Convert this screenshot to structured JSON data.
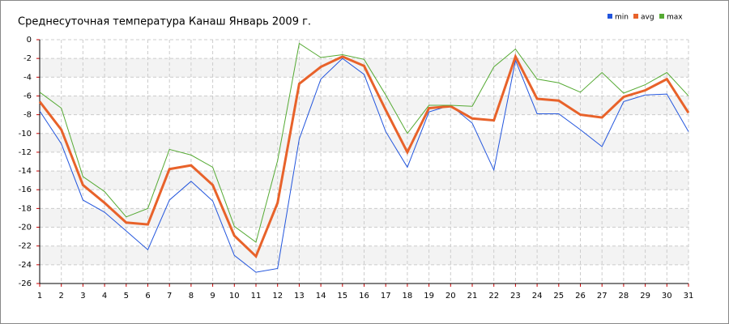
{
  "chart_data": {
    "type": "line",
    "title": "Среднесуточная температура Канаш  Январь 2009 г.",
    "x": [
      1,
      2,
      3,
      4,
      5,
      6,
      7,
      8,
      9,
      10,
      11,
      12,
      13,
      14,
      15,
      16,
      17,
      18,
      19,
      20,
      21,
      22,
      23,
      24,
      25,
      26,
      27,
      28,
      29,
      30,
      31
    ],
    "xlim": [
      1,
      31
    ],
    "ylim": [
      -26,
      0
    ],
    "yticks": [
      -26,
      -24,
      -22,
      -20,
      -18,
      -16,
      -14,
      -12,
      -10,
      -8,
      -6,
      -4,
      -2,
      0
    ],
    "grid": true,
    "legend": "top-right",
    "series": [
      {
        "name": "min",
        "color": "#2255dd",
        "values": [
          -7.6,
          -11.1,
          -17.1,
          -18.4,
          -20.4,
          -22.4,
          -17.1,
          -15.1,
          -17.2,
          -23.0,
          -24.8,
          -24.4,
          -10.6,
          -4.2,
          -2.0,
          -3.7,
          -9.8,
          -13.6,
          -7.7,
          -7.0,
          -8.9,
          -13.9,
          -2.2,
          -7.9,
          -7.9,
          -9.6,
          -11.4,
          -6.6,
          -5.9,
          -5.8,
          -9.8
        ]
      },
      {
        "name": "avg",
        "color": "#e8622a",
        "values": [
          -6.6,
          -9.6,
          -15.5,
          -17.4,
          -19.5,
          -19.7,
          -13.8,
          -13.4,
          -15.5,
          -20.9,
          -23.1,
          -17.4,
          -4.7,
          -2.9,
          -1.8,
          -2.8,
          -7.5,
          -12.0,
          -7.3,
          -7.1,
          -8.4,
          -8.6,
          -1.8,
          -6.3,
          -6.5,
          -8.0,
          -8.3,
          -6.1,
          -5.4,
          -4.2,
          -7.8
        ]
      },
      {
        "name": "max",
        "color": "#55aa33",
        "values": [
          -5.6,
          -7.3,
          -14.6,
          -16.2,
          -18.9,
          -18.0,
          -11.7,
          -12.3,
          -13.6,
          -19.9,
          -21.6,
          -12.9,
          -0.4,
          -1.9,
          -1.6,
          -2.1,
          -5.9,
          -10.0,
          -7.0,
          -7.0,
          -7.1,
          -2.9,
          -1.0,
          -4.2,
          -4.6,
          -5.6,
          -3.5,
          -5.7,
          -4.8,
          -3.5,
          -6.0
        ]
      }
    ]
  }
}
